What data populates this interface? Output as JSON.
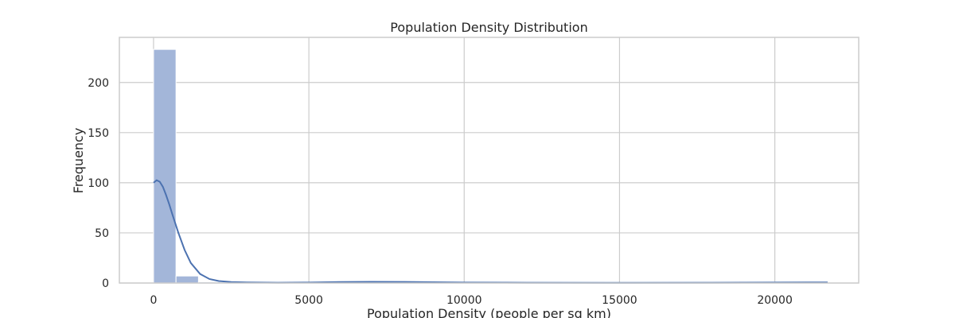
{
  "chart_data": {
    "type": "bar",
    "title": "Population Density Distribution",
    "xlabel": "Population Density (people per sq km)",
    "ylabel": "Frequency",
    "xlim": [
      -1100,
      22700
    ],
    "ylim": [
      0,
      245
    ],
    "xticks": [
      0,
      5000,
      10000,
      15000,
      20000
    ],
    "yticks": [
      0,
      50,
      100,
      150,
      200
    ],
    "grid": true,
    "bins": {
      "start": 0,
      "width": 723,
      "counts": [
        233,
        7,
        1,
        0,
        0,
        0,
        0,
        1,
        1,
        1,
        1,
        0,
        0,
        0,
        0,
        0,
        0,
        0,
        0,
        0,
        0,
        0,
        0,
        0,
        0,
        0,
        0,
        1,
        1,
        1
      ]
    },
    "kde": {
      "x": [
        0,
        100,
        200,
        300,
        400,
        500,
        600,
        800,
        1000,
        1200,
        1500,
        1800,
        2100,
        2500,
        3000,
        4000,
        5000,
        6000,
        7000,
        8000,
        9000,
        10000,
        12000,
        15000,
        18000,
        20000,
        21700
      ],
      "y": [
        100,
        102.5,
        101,
        96,
        88,
        79,
        69,
        50,
        33,
        20,
        9,
        4,
        2,
        1,
        0.6,
        0.3,
        0.5,
        1,
        1.2,
        1.1,
        0.8,
        0.5,
        0.3,
        0.2,
        0.3,
        0.5,
        0.6
      ]
    },
    "colors": {
      "bar": "#a3b6d9",
      "line": "#4c72b0",
      "grid": "#cccccc",
      "frame": "#cccccc"
    }
  }
}
